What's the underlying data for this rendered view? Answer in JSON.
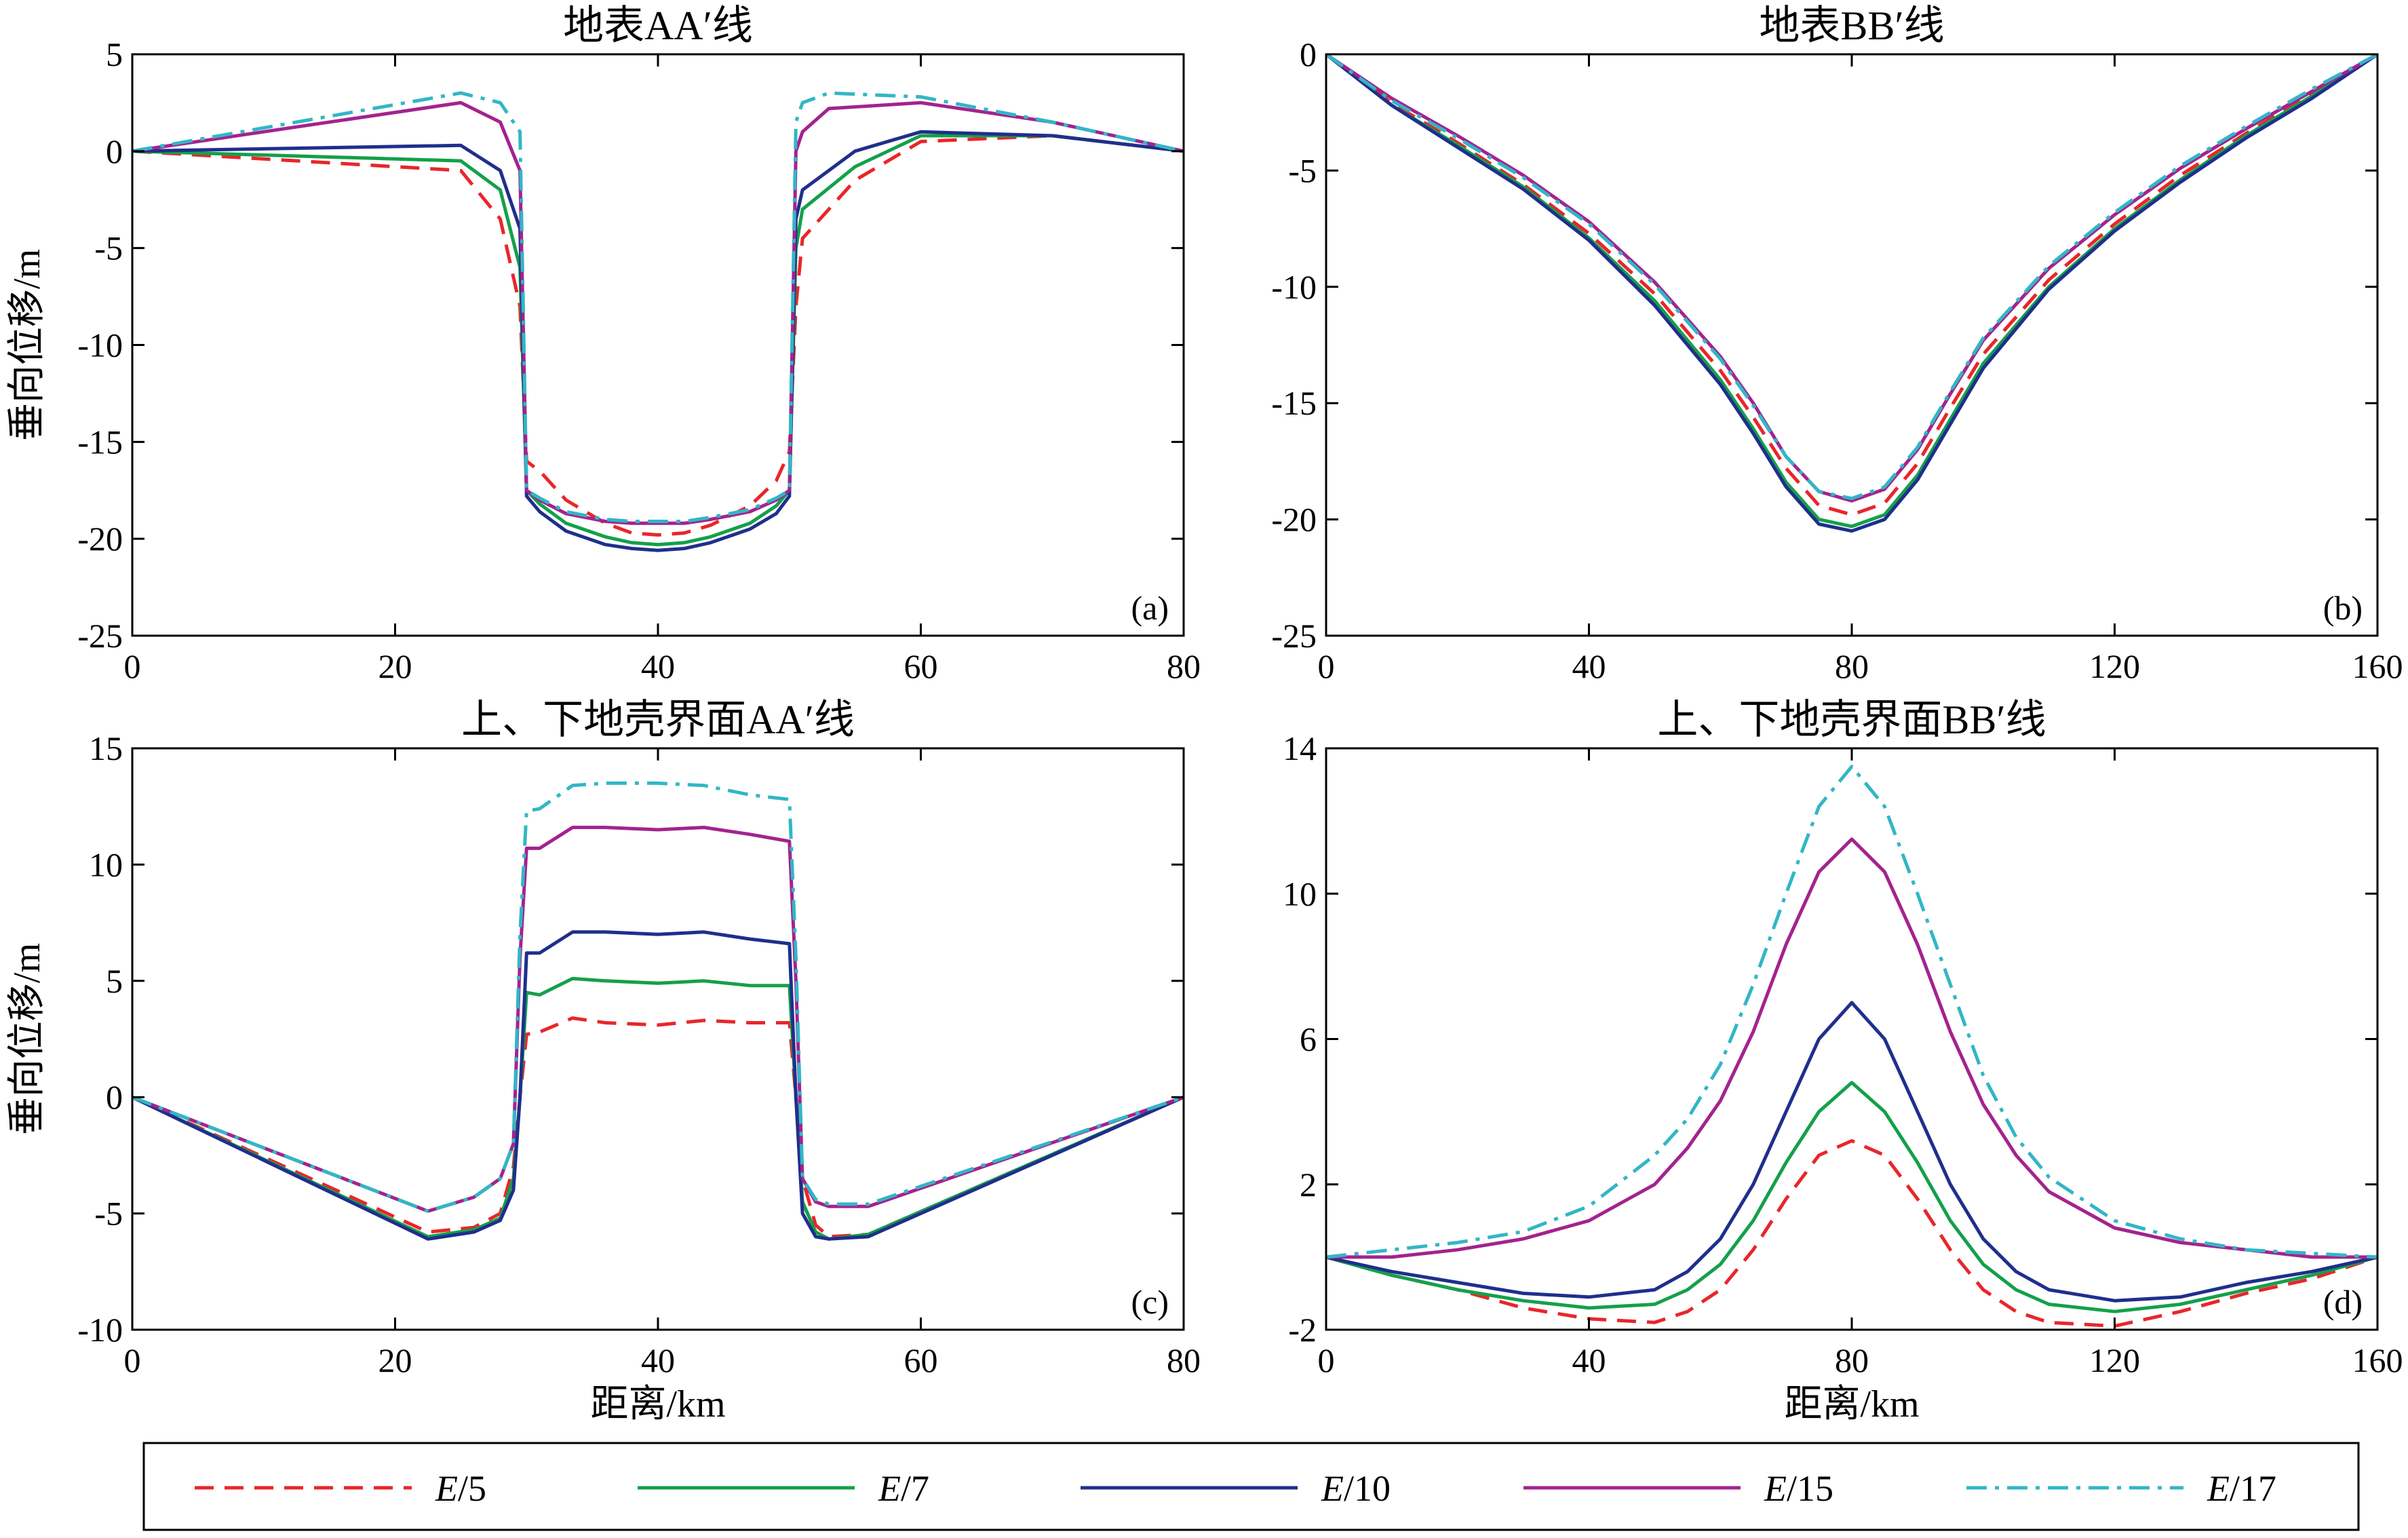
{
  "legend": {
    "placement": "bottom",
    "entries": [
      {
        "series": "E/5",
        "prefix": "E",
        "suffix": "/5",
        "color": "#e8262b",
        "dash": "dashed"
      },
      {
        "series": "E/7",
        "prefix": "E",
        "suffix": "/7",
        "color": "#14a04a",
        "dash": "solid"
      },
      {
        "series": "E/10",
        "prefix": "E",
        "suffix": "/10",
        "color": "#1f2f8c",
        "dash": "solid"
      },
      {
        "series": "E/15",
        "prefix": "E",
        "suffix": "/15",
        "color": "#a3238e",
        "dash": "solid"
      },
      {
        "series": "E/17",
        "prefix": "E",
        "suffix": "/17",
        "color": "#32b6c6",
        "dash": "dashdot"
      }
    ]
  },
  "chart_data": [
    {
      "type": "line",
      "title": "地表AA′线",
      "panel_label": "(a)",
      "xlabel": "",
      "ylabel": "垂向位移/m",
      "xlim": [
        0,
        80
      ],
      "ylim": [
        -25,
        5
      ],
      "xticks": [
        0,
        20,
        40,
        60,
        80
      ],
      "yticks": [
        5,
        0,
        -5,
        -10,
        -15,
        -20,
        -25
      ],
      "grid": false,
      "series": [
        {
          "name": "E/5",
          "x": [
            0,
            25,
            28,
            29.5,
            30,
            31,
            33,
            36,
            38,
            40,
            42,
            44,
            47,
            49,
            50,
            50.5,
            51,
            55,
            60,
            70,
            80
          ],
          "y": [
            0,
            -1,
            -3.5,
            -8,
            -16,
            -16.5,
            -18,
            -19.2,
            -19.7,
            -19.8,
            -19.7,
            -19.3,
            -18.3,
            -17,
            -15.5,
            -8,
            -4.5,
            -1.5,
            0.5,
            0.8,
            0
          ]
        },
        {
          "name": "E/7",
          "x": [
            0,
            25,
            28,
            29.5,
            30,
            31,
            33,
            36,
            38,
            40,
            42,
            44,
            47,
            49,
            50,
            50.5,
            51,
            55,
            60,
            70,
            80
          ],
          "y": [
            0,
            -0.5,
            -2,
            -6,
            -17.5,
            -18.2,
            -19.2,
            -19.9,
            -20.2,
            -20.3,
            -20.2,
            -19.9,
            -19.2,
            -18.3,
            -17.5,
            -5,
            -3,
            -0.8,
            0.8,
            0.8,
            0
          ]
        },
        {
          "name": "E/10",
          "x": [
            0,
            25,
            28,
            29.5,
            30,
            31,
            33,
            36,
            38,
            40,
            42,
            44,
            47,
            49,
            50,
            50.5,
            51,
            55,
            60,
            70,
            80
          ],
          "y": [
            0,
            0.3,
            -1,
            -4,
            -17.8,
            -18.6,
            -19.6,
            -20.3,
            -20.5,
            -20.6,
            -20.5,
            -20.2,
            -19.5,
            -18.7,
            -17.8,
            -3.5,
            -2,
            0,
            1,
            0.8,
            0
          ]
        },
        {
          "name": "E/15",
          "x": [
            0,
            25,
            28,
            29.5,
            30,
            31,
            33,
            36,
            38,
            40,
            42,
            44,
            47,
            49,
            50,
            50.5,
            51,
            53,
            60,
            70,
            80
          ],
          "y": [
            0,
            2.5,
            1.5,
            -1,
            -17.5,
            -18.0,
            -18.7,
            -19.1,
            -19.2,
            -19.2,
            -19.2,
            -19.0,
            -18.6,
            -18.0,
            -17.5,
            0,
            1,
            2.2,
            2.5,
            1.5,
            0
          ]
        },
        {
          "name": "E/17",
          "x": [
            0,
            25,
            28,
            29.5,
            30,
            31,
            33,
            36,
            38,
            40,
            42,
            44,
            47,
            49,
            50,
            50.5,
            51,
            53,
            60,
            70,
            80
          ],
          "y": [
            0,
            3,
            2.5,
            1,
            -17.5,
            -17.9,
            -18.6,
            -19.0,
            -19.1,
            -19.1,
            -19.1,
            -18.9,
            -18.5,
            -17.9,
            -17.5,
            1.5,
            2.5,
            3,
            2.8,
            1.5,
            0
          ]
        }
      ]
    },
    {
      "type": "line",
      "title": "地表BB′线",
      "panel_label": "(b)",
      "xlabel": "",
      "ylabel": "",
      "xlim": [
        0,
        160
      ],
      "ylim": [
        -25,
        0
      ],
      "xticks": [
        0,
        40,
        80,
        120,
        160
      ],
      "yticks": [
        0,
        -5,
        -10,
        -15,
        -20,
        -25
      ],
      "grid": false,
      "series": [
        {
          "name": "E/5",
          "x": [
            0,
            10,
            20,
            30,
            40,
            50,
            60,
            65,
            70,
            75,
            80,
            85,
            90,
            95,
            100,
            110,
            120,
            130,
            140,
            150,
            160
          ],
          "y": [
            0,
            -2.1,
            -3.8,
            -5.6,
            -7.7,
            -10.3,
            -13.6,
            -15.6,
            -17.8,
            -19.4,
            -19.8,
            -19.3,
            -17.6,
            -15.2,
            -12.9,
            -9.7,
            -7.3,
            -5.2,
            -3.4,
            -1.7,
            0
          ]
        },
        {
          "name": "E/7",
          "x": [
            0,
            10,
            20,
            30,
            40,
            50,
            60,
            65,
            70,
            75,
            80,
            85,
            90,
            95,
            100,
            110,
            120,
            130,
            140,
            150,
            160
          ],
          "y": [
            0,
            -2.2,
            -3.9,
            -5.7,
            -7.9,
            -10.6,
            -14.0,
            -16.1,
            -18.4,
            -20.0,
            -20.3,
            -19.8,
            -18.1,
            -15.7,
            -13.3,
            -10.0,
            -7.5,
            -5.4,
            -3.5,
            -1.8,
            0
          ]
        },
        {
          "name": "E/10",
          "x": [
            0,
            10,
            20,
            30,
            40,
            50,
            60,
            65,
            70,
            75,
            80,
            85,
            90,
            95,
            100,
            110,
            120,
            130,
            140,
            150,
            160
          ],
          "y": [
            0,
            -2.2,
            -4.0,
            -5.8,
            -8.0,
            -10.8,
            -14.2,
            -16.3,
            -18.6,
            -20.2,
            -20.5,
            -20.0,
            -18.3,
            -15.9,
            -13.5,
            -10.1,
            -7.6,
            -5.5,
            -3.6,
            -1.9,
            0
          ]
        },
        {
          "name": "E/15",
          "x": [
            0,
            10,
            20,
            30,
            40,
            50,
            60,
            65,
            70,
            75,
            80,
            85,
            90,
            95,
            100,
            110,
            120,
            130,
            140,
            150,
            160
          ],
          "y": [
            0,
            -1.9,
            -3.5,
            -5.2,
            -7.2,
            -9.8,
            -13.0,
            -15.0,
            -17.3,
            -18.8,
            -19.2,
            -18.7,
            -17.0,
            -14.6,
            -12.3,
            -9.2,
            -6.9,
            -4.9,
            -3.2,
            -1.6,
            0
          ]
        },
        {
          "name": "E/17",
          "x": [
            0,
            10,
            20,
            30,
            40,
            50,
            60,
            65,
            70,
            75,
            80,
            85,
            90,
            95,
            100,
            110,
            120,
            130,
            140,
            150,
            160
          ],
          "y": [
            0,
            -2.0,
            -3.6,
            -5.3,
            -7.3,
            -9.9,
            -13.1,
            -15.1,
            -17.3,
            -18.8,
            -19.1,
            -18.6,
            -16.9,
            -14.5,
            -12.2,
            -9.1,
            -6.8,
            -4.8,
            -3.1,
            -1.5,
            0
          ]
        }
      ]
    },
    {
      "type": "line",
      "title": "上、下地壳界面AA′线",
      "panel_label": "(c)",
      "xlabel": "距离/km",
      "ylabel": "垂向位移/m",
      "xlim": [
        0,
        80
      ],
      "ylim": [
        -10,
        15
      ],
      "xticks": [
        0,
        20,
        40,
        60,
        80
      ],
      "yticks": [
        15,
        10,
        5,
        0,
        -5,
        -10
      ],
      "grid": false,
      "series": [
        {
          "name": "E/5",
          "x": [
            0,
            22.5,
            26,
            28,
            29,
            29.5,
            30,
            31,
            33.5,
            36,
            40,
            43.5,
            47,
            50,
            50.5,
            51,
            52,
            53,
            56,
            80
          ],
          "y": [
            0,
            -5.8,
            -5.6,
            -5,
            -3,
            0,
            2.7,
            2.8,
            3.4,
            3.2,
            3.1,
            3.3,
            3.2,
            3.2,
            0,
            -3.5,
            -5.5,
            -6,
            -5.9,
            0
          ]
        },
        {
          "name": "E/7",
          "x": [
            0,
            22.5,
            26,
            28,
            29,
            29.5,
            30,
            31,
            33.5,
            36,
            40,
            43.5,
            47,
            50,
            50.5,
            51,
            52,
            53,
            56,
            80
          ],
          "y": [
            0,
            -6.0,
            -5.7,
            -5.2,
            -3.5,
            0,
            4.5,
            4.4,
            5.1,
            5.0,
            4.9,
            5.0,
            4.8,
            4.8,
            0,
            -4.5,
            -5.8,
            -6.1,
            -5.9,
            0
          ]
        },
        {
          "name": "E/10",
          "x": [
            0,
            22.5,
            26,
            28,
            29,
            29.5,
            30,
            31,
            33.5,
            36,
            40,
            43.5,
            47,
            50,
            50.5,
            51,
            52,
            53,
            56,
            80
          ],
          "y": [
            0,
            -6.1,
            -5.8,
            -5.3,
            -4,
            0,
            6.2,
            6.2,
            7.1,
            7.1,
            7.0,
            7.1,
            6.8,
            6.6,
            0,
            -5,
            -6.0,
            -6.1,
            -6.0,
            0
          ]
        },
        {
          "name": "E/15",
          "x": [
            0,
            22.5,
            26,
            28,
            29,
            29.5,
            30,
            31,
            33.5,
            36,
            40,
            43.5,
            47,
            50,
            50.5,
            51,
            52,
            53,
            56,
            80
          ],
          "y": [
            0,
            -4.9,
            -4.3,
            -3.5,
            -2,
            6,
            10.7,
            10.7,
            11.6,
            11.6,
            11.5,
            11.6,
            11.3,
            11.0,
            5,
            -3.5,
            -4.5,
            -4.7,
            -4.7,
            0
          ]
        },
        {
          "name": "E/17",
          "x": [
            0,
            22.5,
            26,
            28,
            29,
            29.5,
            30,
            31,
            33.5,
            36,
            40,
            43.5,
            47,
            50,
            50.5,
            51,
            52,
            53,
            56,
            80
          ],
          "y": [
            0,
            -4.9,
            -4.3,
            -3.5,
            -2,
            7,
            12.3,
            12.4,
            13.4,
            13.5,
            13.5,
            13.4,
            13.0,
            12.8,
            6,
            -3.5,
            -4.4,
            -4.6,
            -4.6,
            0
          ]
        }
      ]
    },
    {
      "type": "line",
      "title": "上、下地壳界面BB′线",
      "panel_label": "(d)",
      "xlabel": "距离/km",
      "ylabel": "",
      "xlim": [
        0,
        160
      ],
      "ylim": [
        -2,
        14
      ],
      "xticks": [
        0,
        40,
        80,
        120,
        160
      ],
      "yticks": [
        14,
        10,
        6,
        2,
        -2
      ],
      "grid": false,
      "series": [
        {
          "name": "E/5",
          "x": [
            0,
            10,
            20,
            30,
            40,
            50,
            55,
            60,
            65,
            70,
            75,
            80,
            85,
            90,
            95,
            100,
            105,
            110,
            120,
            130,
            140,
            150,
            160
          ],
          "y": [
            0,
            -0.5,
            -0.9,
            -1.4,
            -1.7,
            -1.8,
            -1.5,
            -0.9,
            0.2,
            1.6,
            2.8,
            3.2,
            2.8,
            1.6,
            0.2,
            -0.9,
            -1.5,
            -1.8,
            -1.9,
            -1.5,
            -1.0,
            -0.6,
            0
          ]
        },
        {
          "name": "E/7",
          "x": [
            0,
            10,
            20,
            30,
            40,
            50,
            55,
            60,
            65,
            70,
            75,
            80,
            85,
            90,
            95,
            100,
            105,
            110,
            120,
            130,
            140,
            150,
            160
          ],
          "y": [
            0,
            -0.5,
            -0.9,
            -1.2,
            -1.4,
            -1.3,
            -0.9,
            -0.2,
            1.0,
            2.6,
            4.0,
            4.8,
            4.0,
            2.6,
            1.0,
            -0.2,
            -0.9,
            -1.3,
            -1.5,
            -1.3,
            -0.9,
            -0.5,
            0
          ]
        },
        {
          "name": "E/10",
          "x": [
            0,
            10,
            20,
            30,
            40,
            50,
            55,
            60,
            65,
            70,
            75,
            80,
            85,
            90,
            95,
            100,
            105,
            110,
            120,
            130,
            140,
            150,
            160
          ],
          "y": [
            0,
            -0.4,
            -0.7,
            -1.0,
            -1.1,
            -0.9,
            -0.4,
            0.5,
            2.0,
            4.0,
            6.0,
            7.0,
            6.0,
            4.0,
            2.0,
            0.5,
            -0.4,
            -0.9,
            -1.2,
            -1.1,
            -0.7,
            -0.4,
            0
          ]
        },
        {
          "name": "E/15",
          "x": [
            0,
            10,
            20,
            30,
            40,
            50,
            55,
            60,
            65,
            70,
            75,
            80,
            85,
            90,
            95,
            100,
            105,
            110,
            120,
            130,
            140,
            150,
            160
          ],
          "y": [
            0,
            0,
            0.2,
            0.5,
            1.0,
            2.0,
            3.0,
            4.3,
            6.2,
            8.6,
            10.6,
            11.5,
            10.6,
            8.6,
            6.2,
            4.2,
            2.8,
            1.8,
            0.8,
            0.4,
            0.2,
            0,
            0
          ]
        },
        {
          "name": "E/17",
          "x": [
            0,
            10,
            20,
            30,
            40,
            50,
            55,
            60,
            65,
            70,
            75,
            80,
            85,
            90,
            95,
            100,
            105,
            110,
            120,
            130,
            140,
            150,
            160
          ],
          "y": [
            0,
            0.2,
            0.4,
            0.7,
            1.4,
            2.8,
            3.8,
            5.3,
            7.5,
            10.0,
            12.4,
            13.5,
            12.4,
            10.0,
            7.5,
            5.0,
            3.3,
            2.2,
            1.0,
            0.5,
            0.2,
            0.1,
            0
          ]
        }
      ]
    }
  ]
}
